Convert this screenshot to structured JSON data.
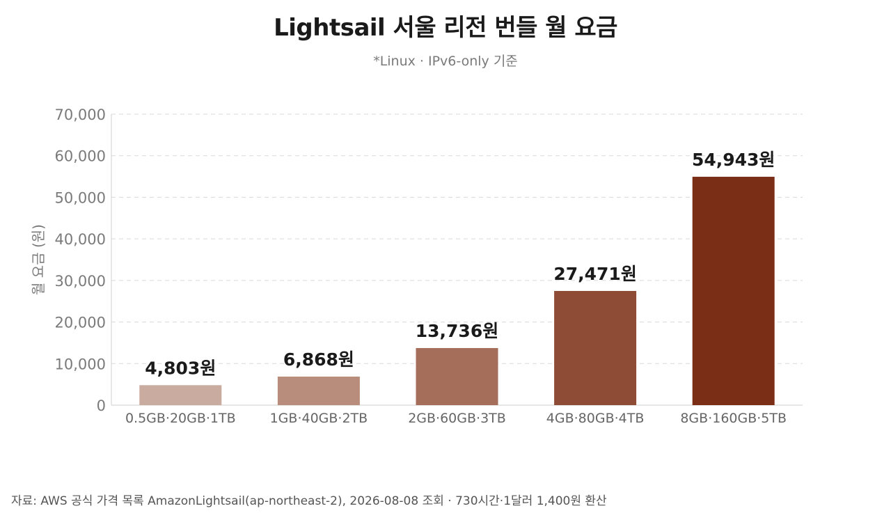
{
  "chart_data": {
    "type": "bar",
    "title": "Lightsail 서울 리전 번들 월 요금",
    "subtitle": "*Linux · IPv6-only 기준",
    "xlabel": "",
    "ylabel": "월 요금 (원)",
    "categories": [
      "0.5GB·20GB·1TB",
      "1GB·40GB·2TB",
      "2GB·60GB·3TB",
      "4GB·80GB·4TB",
      "8GB·160GB·5TB"
    ],
    "values": [
      4803,
      6868,
      13736,
      27471,
      54943
    ],
    "data_labels": [
      "4,803원",
      "6,868원",
      "13,736원",
      "27,471원",
      "54,943원"
    ],
    "ylim": [
      0,
      70000
    ],
    "yticks": [
      0,
      10000,
      20000,
      30000,
      40000,
      50000,
      60000,
      70000
    ],
    "ytick_labels": [
      "0",
      "10,000",
      "20,000",
      "30,000",
      "40,000",
      "50,000",
      "60,000",
      "70,000"
    ],
    "bar_colors": [
      "#c9aba0",
      "#b98d7c",
      "#a46e5b",
      "#8e4c37",
      "#7a2e15"
    ],
    "grid": true,
    "legend": "none"
  },
  "source": "자료: AWS 공식 가격 목록 AmazonLightsail(ap-northeast-2), 2026-08-08 조회 · 730시간·1달러 1,400원 환산"
}
